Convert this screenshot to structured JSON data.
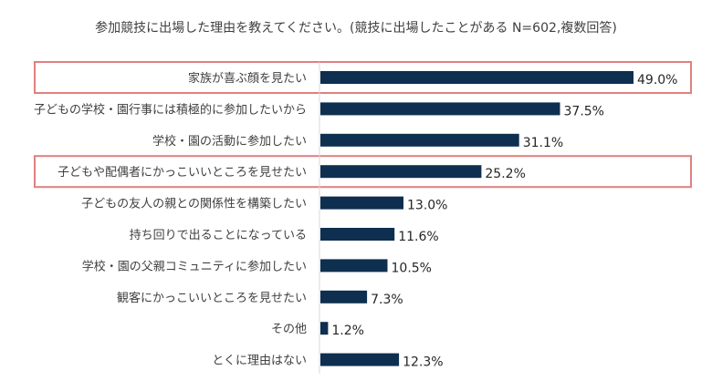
{
  "chart_data": {
    "type": "bar",
    "orientation": "horizontal",
    "title": "参加競技に出場した理由を教えてください。(競技に出場したことがある N=602,複数回答)",
    "categories": [
      "家族が喜ぶ顔を見たい",
      "子どもの学校・園行事には積極的に参加したいから",
      "学校・園の活動に参加したい",
      "子どもや配偶者にかっこいいところを見せたい",
      "子どもの友人の親との関係性を構築したい",
      "持ち回りで出ることになっている",
      "学校・園の父親コミュニティに参加したい",
      "観客にかっこいいところを見せたい",
      "その他",
      "とくに理由はない"
    ],
    "values": [
      49.0,
      37.5,
      31.1,
      25.2,
      13.0,
      11.6,
      10.5,
      7.3,
      1.2,
      12.3
    ],
    "value_labels": [
      "49.0%",
      "37.5%",
      "31.1%",
      "25.2%",
      "13.0%",
      "11.6%",
      "10.5%",
      "7.3%",
      "1.2%",
      "12.3%"
    ],
    "xlim": [
      0,
      50
    ],
    "highlighted_categories": [
      "家族が喜ぶ顔を見たい",
      "子どもや配偶者にかっこいいところを見せたい"
    ],
    "grid": false,
    "colors": {
      "bar": "#0e2f4f",
      "highlight": "#e08080",
      "axis": "#d9d9d9"
    }
  }
}
